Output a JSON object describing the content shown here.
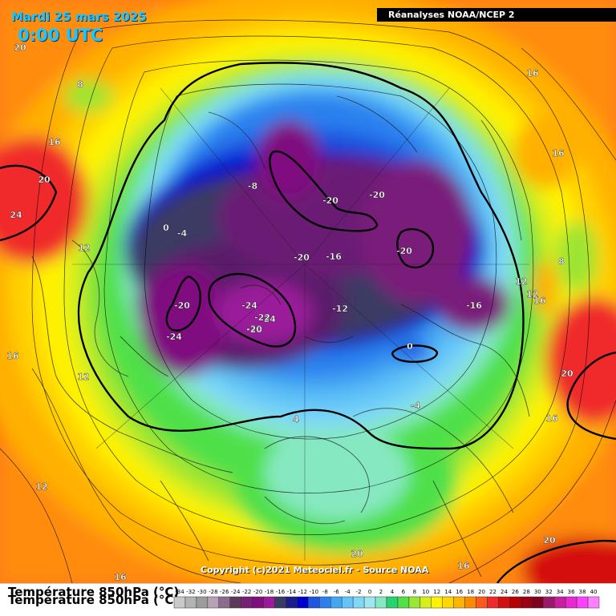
{
  "header": {
    "date": "Mardi 25 mars 2025",
    "time": "0:00 UTC",
    "source": "Réanalyses NOAA/NCEP 2"
  },
  "copyright": "Copyright (c)2021 Meteociel.fr - Source NOAA",
  "legend": {
    "title": "Température 850hPa (°C)",
    "ticks": [
      "-34",
      "-32",
      "-30",
      "-28",
      "-26",
      "-24",
      "-22",
      "-20",
      "-18",
      "-16",
      "-14",
      "-12",
      "-10",
      "-8",
      "-6",
      "-4",
      "-2",
      "0",
      "2",
      "4",
      "6",
      "8",
      "10",
      "12",
      "14",
      "16",
      "18",
      "20",
      "22",
      "24",
      "26",
      "28",
      "30",
      "32",
      "34",
      "36",
      "38",
      "40"
    ],
    "colors": [
      "#c9c9c9",
      "#b3b3b3",
      "#9c9c9c",
      "#b7a2b7",
      "#8f6a8f",
      "#5a3a5a",
      "#7a1e7a",
      "#7f0f7f",
      "#9a1a9a",
      "#3a3a63",
      "#1c1c8c",
      "#0000cd",
      "#1e55e0",
      "#2c80ee",
      "#44a6f3",
      "#62c4f7",
      "#7fd8f7",
      "#9fe6f4",
      "#86e8c0",
      "#27d36f",
      "#4fe04a",
      "#9be533",
      "#d6ef1a",
      "#fff200",
      "#ffd600",
      "#ffb400",
      "#ff8a00",
      "#ff5a1e",
      "#f02a2a",
      "#d40f0f",
      "#b80000",
      "#9c0010",
      "#800020",
      "#9b1b6b",
      "#c81ea0",
      "#ea28d2",
      "#ff40ff",
      "#ff80ff"
    ]
  },
  "map_labels": [
    "20",
    "8",
    "16",
    "20",
    "24",
    "0",
    "-4",
    "12",
    "16",
    "12",
    "12",
    "-8",
    "-20",
    "-20",
    "-20",
    "-16",
    "-20",
    "-20",
    "-24",
    "-20",
    "-24",
    "-24",
    "-22",
    "-20",
    "-12",
    "-16",
    "0",
    "-4",
    "4",
    "12",
    "16",
    "16",
    "20",
    "8",
    "12",
    "16",
    "16",
    "20",
    "20",
    "16",
    "16"
  ]
}
